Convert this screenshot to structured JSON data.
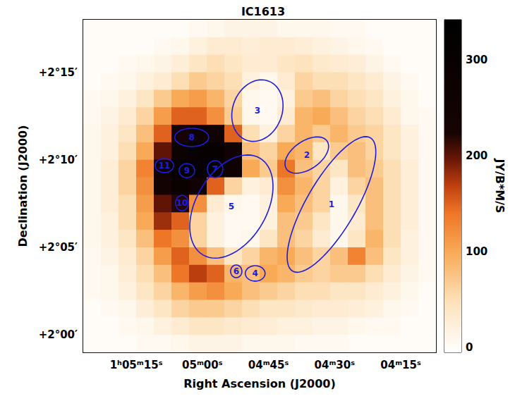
{
  "chart_data": {
    "type": "heatmap",
    "title": "IC1613",
    "x_label": "Right Ascension (J2000)",
    "y_label": "Declination (J2000)",
    "xlim": [
      3927,
      3847
    ],
    "xticks": [
      {
        "value": 3915,
        "label": "1ʰ05ᵐ15ˢ"
      },
      {
        "value": 3900,
        "label": "05ᵐ00ˢ"
      },
      {
        "value": 3885,
        "label": "04ᵐ45ˢ"
      },
      {
        "value": 3870,
        "label": "04ᵐ30ˢ"
      },
      {
        "value": 3855,
        "label": "04ᵐ15ˢ"
      }
    ],
    "ylim": [
      119,
      138
    ],
    "yticks": [
      {
        "value": 120,
        "label": "+2°00′"
      },
      {
        "value": 125,
        "label": "+2°05′"
      },
      {
        "value": 130,
        "label": "+2°10′"
      },
      {
        "value": 135,
        "label": "+2°15′"
      }
    ],
    "grid": false,
    "image": {
      "ra_edges": [
        3927,
        3923,
        3919,
        3915,
        3911,
        3907,
        3903,
        3899,
        3895,
        3891,
        3887,
        3883,
        3879,
        3875,
        3871,
        3867,
        3863,
        3859,
        3855,
        3851,
        3847
      ],
      "dec_edges": [
        138,
        137,
        136,
        135,
        134,
        133,
        132,
        131,
        130,
        129,
        128,
        127,
        126,
        125,
        124,
        123,
        122,
        121,
        120,
        119
      ],
      "values": [
        [
          0,
          0,
          0,
          0,
          0,
          0,
          5,
          10,
          15,
          15,
          15,
          10,
          10,
          10,
          5,
          5,
          0,
          0,
          0,
          0
        ],
        [
          0,
          0,
          0,
          0,
          5,
          10,
          20,
          30,
          30,
          25,
          30,
          30,
          25,
          20,
          15,
          10,
          5,
          0,
          0,
          0
        ],
        [
          0,
          0,
          5,
          10,
          15,
          25,
          40,
          50,
          40,
          30,
          30,
          40,
          45,
          35,
          30,
          25,
          15,
          5,
          0,
          0
        ],
        [
          0,
          5,
          10,
          20,
          30,
          50,
          70,
          60,
          50,
          20,
          10,
          30,
          60,
          50,
          50,
          40,
          30,
          15,
          5,
          0
        ],
        [
          5,
          10,
          20,
          40,
          70,
          100,
          110,
          90,
          60,
          10,
          5,
          20,
          70,
          80,
          60,
          50,
          40,
          20,
          10,
          0
        ],
        [
          5,
          15,
          30,
          60,
          110,
          150,
          150,
          120,
          70,
          10,
          5,
          30,
          90,
          100,
          80,
          60,
          50,
          30,
          10,
          5
        ],
        [
          10,
          20,
          40,
          80,
          150,
          230,
          260,
          250,
          150,
          50,
          20,
          60,
          90,
          70,
          90,
          70,
          60,
          40,
          20,
          5
        ],
        [
          10,
          20,
          50,
          100,
          200,
          280,
          300,
          300,
          250,
          80,
          60,
          100,
          90,
          40,
          70,
          80,
          60,
          40,
          20,
          5
        ],
        [
          10,
          25,
          60,
          130,
          250,
          300,
          300,
          300,
          260,
          100,
          70,
          140,
          80,
          60,
          40,
          80,
          70,
          50,
          25,
          5
        ],
        [
          10,
          25,
          60,
          120,
          240,
          290,
          250,
          150,
          60,
          20,
          30,
          120,
          90,
          60,
          20,
          60,
          80,
          50,
          25,
          5
        ],
        [
          10,
          25,
          50,
          110,
          200,
          220,
          120,
          30,
          10,
          5,
          20,
          100,
          80,
          60,
          10,
          40,
          80,
          50,
          25,
          5
        ],
        [
          10,
          20,
          50,
          100,
          180,
          150,
          60,
          20,
          5,
          5,
          20,
          80,
          70,
          40,
          10,
          30,
          80,
          50,
          25,
          5
        ],
        [
          10,
          20,
          40,
          80,
          140,
          120,
          60,
          20,
          5,
          10,
          40,
          80,
          60,
          30,
          10,
          40,
          90,
          50,
          20,
          5
        ],
        [
          5,
          15,
          30,
          60,
          110,
          150,
          120,
          80,
          40,
          60,
          90,
          100,
          80,
          60,
          80,
          130,
          80,
          40,
          20,
          5
        ],
        [
          5,
          10,
          25,
          50,
          80,
          140,
          170,
          150,
          90,
          80,
          100,
          90,
          70,
          60,
          70,
          70,
          50,
          30,
          15,
          5
        ],
        [
          5,
          10,
          20,
          40,
          60,
          90,
          110,
          120,
          100,
          80,
          70,
          60,
          50,
          50,
          40,
          40,
          30,
          20,
          10,
          0
        ],
        [
          0,
          5,
          10,
          25,
          40,
          60,
          70,
          70,
          60,
          50,
          40,
          40,
          35,
          30,
          30,
          25,
          20,
          10,
          5,
          0
        ],
        [
          0,
          0,
          5,
          10,
          20,
          30,
          40,
          40,
          35,
          30,
          25,
          20,
          20,
          15,
          15,
          10,
          5,
          5,
          0,
          0
        ],
        [
          0,
          0,
          0,
          5,
          5,
          10,
          15,
          15,
          15,
          10,
          10,
          10,
          5,
          5,
          5,
          0,
          0,
          0,
          0,
          0
        ]
      ]
    },
    "colorbar": {
      "label": "JY/B*M/S",
      "lim": [
        -5,
        342
      ],
      "ticks": [
        0,
        100,
        200,
        300
      ]
    },
    "regions": [
      {
        "label": "1",
        "ra": 3870.7,
        "dec": 127.45,
        "a": 4.4,
        "b": 1.4,
        "pa": 330
      },
      {
        "label": "2",
        "ra": 3876.3,
        "dec": 130.27,
        "a": 1.4,
        "b": 0.8,
        "pa": 305
      },
      {
        "label": "3",
        "ra": 3887.5,
        "dec": 132.81,
        "a": 1.8,
        "b": 1.4,
        "pa": 340
      },
      {
        "label": "4",
        "ra": 3888.0,
        "dec": 123.51,
        "a": 0.56,
        "b": 0.44,
        "pa": 90
      },
      {
        "label": "5",
        "ra": 3893.4,
        "dec": 127.33,
        "a": 3.2,
        "b": 2.0,
        "pa": 330
      },
      {
        "label": "6",
        "ra": 3892.3,
        "dec": 123.63,
        "a": 0.36,
        "b": 0.32,
        "pa": 0
      },
      {
        "label": "7",
        "ra": 3897.1,
        "dec": 129.47,
        "a": 0.48,
        "b": 0.44,
        "pa": 0
      },
      {
        "label": "8",
        "ra": 3902.4,
        "dec": 131.28,
        "a": 0.96,
        "b": 0.52,
        "pa": 90
      },
      {
        "label": "9",
        "ra": 3903.5,
        "dec": 129.38,
        "a": 0.44,
        "b": 0.4,
        "pa": 90
      },
      {
        "label": "10",
        "ra": 3904.6,
        "dec": 127.53,
        "a": 0.44,
        "b": 0.36,
        "pa": 0
      },
      {
        "label": "11",
        "ra": 3908.6,
        "dec": 129.67,
        "a": 0.52,
        "b": 0.4,
        "pa": 90
      }
    ]
  }
}
